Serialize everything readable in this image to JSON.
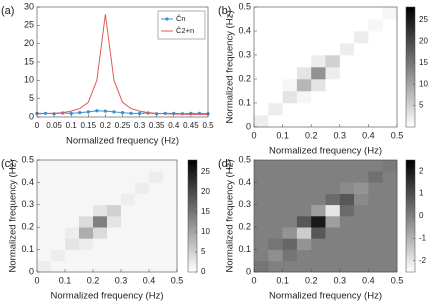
{
  "chart_data": [
    {
      "type": "line",
      "panel_label": "(a)",
      "x_label": "Normalized frequency (Hz)",
      "x": [
        0,
        0.025,
        0.05,
        0.075,
        0.1,
        0.125,
        0.15,
        0.175,
        0.2,
        0.225,
        0.25,
        0.275,
        0.3,
        0.325,
        0.35,
        0.375,
        0.4,
        0.425,
        0.45,
        0.475,
        0.5
      ],
      "series": [
        {
          "name": "Ĉn",
          "color": "#3a8fd0",
          "markers": true,
          "values": [
            1.0,
            1.0,
            0.9,
            1.1,
            1.0,
            1.2,
            1.4,
            1.7,
            1.6,
            1.4,
            1.2,
            1.0,
            1.0,
            1.1,
            0.9,
            1.0,
            1.0,
            0.9,
            1.0,
            1.0,
            0.9
          ]
        },
        {
          "name": "Ĉ2+n",
          "color": "#e05a5a",
          "markers": false,
          "values": [
            0.8,
            1.0,
            1.0,
            1.2,
            1.6,
            2.3,
            4,
            10,
            28,
            10,
            4,
            2.3,
            1.6,
            1.2,
            1.0,
            0.9,
            0.8,
            0.8,
            0.7,
            0.7,
            0.7
          ]
        }
      ],
      "xlim": [
        0,
        0.5
      ],
      "ylim": [
        0,
        30
      ],
      "xticks": [
        0,
        0.05,
        0.1,
        0.15,
        0.2,
        0.25,
        0.3,
        0.35,
        0.4,
        0.45,
        0.5
      ],
      "yticks": [
        0,
        5,
        10,
        15,
        20,
        25,
        30
      ],
      "legend": "upper right"
    },
    {
      "type": "heatmap",
      "panel_label": "(b)",
      "x_label": "Normalized frequency (Hz)",
      "y_label": "Normalized frequency (Hz)",
      "xlim": [
        0,
        0.5
      ],
      "ylim": [
        0,
        0.5
      ],
      "xticks": [
        0,
        0.1,
        0.2,
        0.3,
        0.4,
        0.5
      ],
      "yticks": [
        0,
        0.1,
        0.2,
        0.3,
        0.4,
        0.5
      ],
      "clim": [
        0,
        28
      ],
      "cticks": [
        5,
        10,
        15,
        20,
        25
      ],
      "z": [
        [
          2,
          0,
          0,
          0,
          0,
          0,
          0,
          0,
          0,
          0
        ],
        [
          0,
          2,
          0,
          0,
          0,
          0,
          0,
          0,
          0,
          0
        ],
        [
          0,
          0,
          3,
          1,
          0,
          0,
          0,
          0,
          0,
          0
        ],
        [
          0,
          0,
          1,
          8,
          3,
          0,
          0,
          0,
          0,
          0
        ],
        [
          0,
          0,
          0,
          3,
          12,
          2,
          0,
          0,
          0,
          0
        ],
        [
          0,
          0,
          0,
          0,
          2,
          5,
          0,
          0,
          0,
          0
        ],
        [
          0,
          0,
          0,
          0,
          0,
          0,
          2,
          0,
          0,
          0
        ],
        [
          0,
          0,
          0,
          0,
          0,
          0,
          0,
          2,
          0,
          0
        ],
        [
          0,
          0,
          0,
          0,
          0,
          0,
          0,
          0,
          1,
          0
        ],
        [
          0,
          0,
          0,
          0,
          0,
          0,
          0,
          0,
          0,
          1
        ]
      ]
    },
    {
      "type": "heatmap",
      "panel_label": "(c)",
      "x_label": "Normalized frequency (Hz)",
      "y_label": "Normalized frequency (Hz)",
      "xlim": [
        0,
        0.5
      ],
      "ylim": [
        0,
        0.5
      ],
      "xticks": [
        0,
        0.1,
        0.2,
        0.3,
        0.4,
        0.5
      ],
      "yticks": [
        0,
        0.1,
        0.2,
        0.3,
        0.4,
        0.5
      ],
      "clim": [
        0,
        28
      ],
      "cticks": [
        0,
        5,
        10,
        15,
        20,
        25
      ],
      "z": [
        [
          2,
          1,
          1,
          1,
          1,
          1,
          1,
          1,
          1,
          1
        ],
        [
          1,
          2,
          1,
          1,
          1,
          1,
          1,
          1,
          1,
          1
        ],
        [
          1,
          1,
          3,
          2,
          1,
          1,
          1,
          1,
          1,
          1
        ],
        [
          1,
          1,
          2,
          9,
          4,
          1,
          1,
          1,
          1,
          1
        ],
        [
          1,
          1,
          1,
          4,
          14,
          3,
          1,
          1,
          1,
          1
        ],
        [
          1,
          1,
          1,
          1,
          3,
          5,
          1,
          1,
          1,
          1
        ],
        [
          1,
          1,
          1,
          1,
          1,
          1,
          2,
          1,
          1,
          1
        ],
        [
          1,
          1,
          1,
          1,
          1,
          1,
          1,
          2,
          1,
          1
        ],
        [
          1,
          1,
          1,
          1,
          1,
          1,
          1,
          1,
          2,
          1
        ],
        [
          1,
          1,
          1,
          1,
          1,
          1,
          1,
          1,
          1,
          1
        ]
      ]
    },
    {
      "type": "heatmap",
      "panel_label": "(d)",
      "x_label": "Normalized frequency (Hz)",
      "y_label": "Normalized frequency (Hz)",
      "xlim": [
        0,
        0.5
      ],
      "ylim": [
        0,
        0.5
      ],
      "xticks": [
        0,
        0.1,
        0.2,
        0.3,
        0.4,
        0.5
      ],
      "yticks": [
        0,
        0.1,
        0.2,
        0.3,
        0.4,
        0.5
      ],
      "clim": [
        -2.5,
        2.5
      ],
      "cticks": [
        -2,
        -1,
        0,
        1,
        2
      ],
      "z": [
        [
          0.2,
          0,
          0,
          0,
          0,
          0,
          0,
          0,
          0,
          0
        ],
        [
          0,
          -0.3,
          0.2,
          0,
          0,
          0,
          0,
          0,
          0,
          0
        ],
        [
          0,
          0.2,
          0.5,
          -0.4,
          0,
          0,
          0,
          0,
          0,
          0
        ],
        [
          0,
          0,
          -0.4,
          -1.5,
          0.8,
          0,
          0,
          0,
          0,
          0
        ],
        [
          0,
          0,
          0,
          0.8,
          2,
          -0.6,
          0,
          0,
          0,
          0
        ],
        [
          0,
          0,
          0,
          0,
          -0.6,
          -2,
          0.4,
          0,
          0,
          0
        ],
        [
          0,
          0,
          0,
          0,
          0,
          0.4,
          0.8,
          -0.2,
          0,
          0
        ],
        [
          0,
          0,
          0,
          0,
          0,
          0,
          -0.2,
          -0.4,
          0,
          0
        ],
        [
          0,
          0,
          0,
          0,
          0,
          0,
          0,
          0,
          0.3,
          0
        ],
        [
          0,
          0,
          0,
          0,
          0,
          0,
          0,
          0,
          0,
          0.1
        ]
      ]
    }
  ]
}
